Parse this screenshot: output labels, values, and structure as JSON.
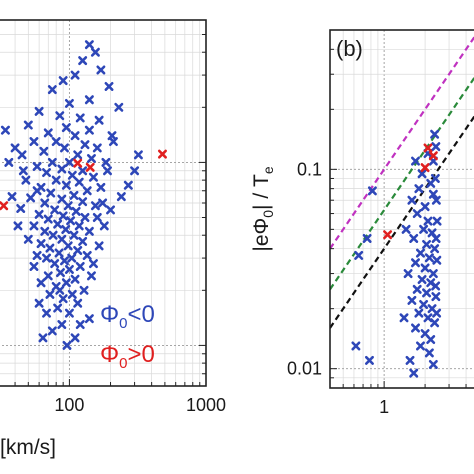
{
  "chart_data": [
    {
      "type": "scatter",
      "panel": "a",
      "xscale": "log",
      "yscale": "log",
      "xlim": [
        30,
        1000
      ],
      "ylim": [
        0.006,
        0.6
      ],
      "xticks": [
        100,
        1000
      ],
      "xtick_labels": [
        "100",
        "1000"
      ],
      "xlabel": "[km/s]",
      "ylabel": "",
      "grid": true,
      "legend": {
        "placement": "bottom-right",
        "entries": [
          {
            "label_main": "Φ",
            "label_sub": "0",
            "label_rest": "<0",
            "color": "#2e47b8"
          },
          {
            "label_main": "Φ",
            "label_sub": "0",
            "label_rest": ">0",
            "color": "#e02020"
          }
        ]
      },
      "series": [
        {
          "color": "#2e47b8",
          "marker": "x",
          "points": [
            [
              140,
              0.44
            ],
            [
              155,
              0.4
            ],
            [
              125,
              0.36
            ],
            [
              170,
              0.32
            ],
            [
              110,
              0.3
            ],
            [
              90,
              0.28
            ],
            [
              195,
              0.26
            ],
            [
              75,
              0.25
            ],
            [
              140,
              0.22
            ],
            [
              100,
              0.21
            ],
            [
              230,
              0.2
            ],
            [
              60,
              0.19
            ],
            [
              85,
              0.18
            ],
            [
              120,
              0.175
            ],
            [
              165,
              0.17
            ],
            [
              50,
              0.16
            ],
            [
              95,
              0.155
            ],
            [
              140,
              0.15
            ],
            [
              70,
              0.145
            ],
            [
              110,
              0.14
            ],
            [
              205,
              0.14
            ],
            [
              55,
              0.13
            ],
            [
              80,
              0.13
            ],
            [
              130,
              0.125
            ],
            [
              92,
              0.12
            ],
            [
              160,
              0.12
            ],
            [
              65,
              0.115
            ],
            [
              115,
              0.11
            ],
            [
              45,
              0.11
            ],
            [
              145,
              0.105
            ],
            [
              75,
              0.1
            ],
            [
              100,
              0.1
            ],
            [
              185,
              0.1
            ],
            [
              58,
              0.095
            ],
            [
              88,
              0.092
            ],
            [
              125,
              0.09
            ],
            [
              68,
              0.088
            ],
            [
              105,
              0.085
            ],
            [
              150,
              0.083
            ],
            [
              48,
              0.08
            ],
            [
              80,
              0.08
            ],
            [
              118,
              0.078
            ],
            [
              95,
              0.075
            ],
            [
              62,
              0.073
            ],
            [
              170,
              0.073
            ],
            [
              135,
              0.07
            ],
            [
              73,
              0.068
            ],
            [
              108,
              0.066
            ],
            [
              52,
              0.064
            ],
            [
              88,
              0.063
            ],
            [
              125,
              0.061
            ],
            [
              66,
              0.06
            ],
            [
              98,
              0.058
            ],
            [
              155,
              0.058
            ],
            [
              44,
              0.056
            ],
            [
              78,
              0.055
            ],
            [
              112,
              0.054
            ],
            [
              60,
              0.052
            ],
            [
              90,
              0.051
            ],
            [
              130,
              0.05
            ],
            [
              70,
              0.049
            ],
            [
              102,
              0.048
            ],
            [
              82,
              0.046
            ],
            [
              55,
              0.045
            ],
            [
              118,
              0.045
            ],
            [
              94,
              0.043
            ],
            [
              66,
              0.042
            ],
            [
              140,
              0.042
            ],
            [
              76,
              0.04
            ],
            [
              108,
              0.04
            ],
            [
              50,
              0.038
            ],
            [
              88,
              0.038
            ],
            [
              125,
              0.037
            ],
            [
              62,
              0.036
            ],
            [
              98,
              0.035
            ],
            [
              72,
              0.034
            ],
            [
              115,
              0.033
            ],
            [
              84,
              0.032
            ],
            [
              58,
              0.031
            ],
            [
              135,
              0.031
            ],
            [
              104,
              0.03
            ],
            [
              68,
              0.03
            ],
            [
              92,
              0.029
            ],
            [
              78,
              0.028
            ],
            [
              120,
              0.027
            ],
            [
              55,
              0.027
            ],
            [
              100,
              0.026
            ],
            [
              86,
              0.025
            ],
            [
              70,
              0.024
            ],
            [
              145,
              0.024
            ],
            [
              110,
              0.023
            ],
            [
              62,
              0.022
            ],
            [
              95,
              0.022
            ],
            [
              80,
              0.021
            ],
            [
              128,
              0.02
            ],
            [
              105,
              0.019
            ],
            [
              72,
              0.019
            ],
            [
              90,
              0.018
            ],
            [
              60,
              0.017
            ],
            [
              115,
              0.017
            ],
            [
              82,
              0.016
            ],
            [
              100,
              0.015
            ],
            [
              68,
              0.015
            ],
            [
              140,
              0.014
            ],
            [
              88,
              0.013
            ],
            [
              75,
              0.012
            ],
            [
              110,
              0.011
            ],
            [
              96,
              0.01
            ],
            [
              64,
              0.011
            ],
            [
              120,
              0.013
            ],
            [
              85,
              0.02
            ],
            [
              150,
              0.028
            ],
            [
              165,
              0.035
            ],
            [
              180,
              0.045
            ],
            [
              200,
              0.055
            ],
            [
              240,
              0.065
            ],
            [
              270,
              0.075
            ],
            [
              300,
              0.09
            ],
            [
              320,
              0.11
            ],
            [
              210,
              0.13
            ],
            [
              190,
              0.09
            ],
            [
              175,
              0.06
            ],
            [
              160,
              0.05
            ],
            [
              58,
              0.07
            ],
            [
              46,
              0.09
            ],
            [
              40,
              0.12
            ],
            [
              38,
              0.065
            ],
            [
              42,
              0.045
            ],
            [
              36,
              0.1
            ],
            [
              34,
              0.15
            ]
          ]
        },
        {
          "color": "#e02020",
          "marker": "x",
          "points": [
            [
              115,
              0.099
            ],
            [
              142,
              0.094
            ],
            [
              480,
              0.111
            ],
            [
              33,
              0.058
            ]
          ]
        }
      ]
    },
    {
      "type": "scatter",
      "panel": "b",
      "panel_label": "(b)",
      "xscale": "log",
      "yscale": "log",
      "xlim": [
        0.4,
        6
      ],
      "ylim": [
        0.008,
        0.5
      ],
      "xticks": [
        1
      ],
      "xtick_labels": [
        "1"
      ],
      "yticks": [
        0.01,
        0.1
      ],
      "ytick_labels": [
        "0.01",
        "0.1"
      ],
      "ylabel_main": "|eΦ",
      "ylabel_sub": "0",
      "ylabel_rest": "| / T",
      "ylabel_sub2": "e",
      "xlabel": "",
      "grid": true,
      "reference_lines": [
        {
          "color": "#c032c0",
          "style": "dashed",
          "y_at_xmin": 0.04,
          "slope": 1
        },
        {
          "color": "#2a8a3a",
          "style": "dashed",
          "y_at_xmin": 0.025,
          "slope": 1
        },
        {
          "color": "#111111",
          "style": "dashed",
          "y_at_xmin": 0.016,
          "slope": 1
        }
      ],
      "series": [
        {
          "color": "#2e47b8",
          "marker": "x",
          "points": [
            [
              0.82,
              0.078
            ],
            [
              0.75,
              0.045
            ],
            [
              0.62,
              0.013
            ],
            [
              0.65,
              0.037
            ],
            [
              0.78,
              0.011
            ],
            [
              1.7,
              0.11
            ],
            [
              1.9,
              0.095
            ],
            [
              2.1,
              0.12
            ],
            [
              1.8,
              0.08
            ],
            [
              2.2,
              0.085
            ],
            [
              1.6,
              0.07
            ],
            [
              2.0,
              0.065
            ],
            [
              2.3,
              0.075
            ],
            [
              1.75,
              0.06
            ],
            [
              2.1,
              0.055
            ],
            [
              1.95,
              0.05
            ],
            [
              2.25,
              0.048
            ],
            [
              1.65,
              0.045
            ],
            [
              2.05,
              0.042
            ],
            [
              2.35,
              0.04
            ],
            [
              1.85,
              0.038
            ],
            [
              2.15,
              0.036
            ],
            [
              1.7,
              0.034
            ],
            [
              2.0,
              0.032
            ],
            [
              2.3,
              0.03
            ],
            [
              1.9,
              0.028
            ],
            [
              2.2,
              0.027
            ],
            [
              1.75,
              0.025
            ],
            [
              2.05,
              0.024
            ],
            [
              2.4,
              0.023
            ],
            [
              1.6,
              0.022
            ],
            [
              1.95,
              0.021
            ],
            [
              2.25,
              0.02
            ],
            [
              1.8,
              0.019
            ],
            [
              2.1,
              0.018
            ],
            [
              2.35,
              0.017
            ],
            [
              1.7,
              0.016
            ],
            [
              2.0,
              0.015
            ],
            [
              2.2,
              0.014
            ],
            [
              1.85,
              0.013
            ],
            [
              2.15,
              0.012
            ],
            [
              1.55,
              0.011
            ],
            [
              2.3,
              0.0105
            ],
            [
              1.65,
              0.0095
            ],
            [
              2.4,
              0.13
            ],
            [
              2.35,
              0.15
            ],
            [
              2.3,
              0.11
            ],
            [
              2.38,
              0.09
            ],
            [
              2.42,
              0.07
            ],
            [
              2.45,
              0.055
            ],
            [
              2.41,
              0.045
            ],
            [
              2.44,
              0.035
            ],
            [
              2.39,
              0.026
            ],
            [
              2.43,
              0.019
            ],
            [
              1.5,
              0.03
            ],
            [
              1.45,
              0.05
            ],
            [
              1.4,
              0.018
            ]
          ]
        },
        {
          "color": "#e02020",
          "marker": "x",
          "points": [
            [
              1.06,
              0.047
            ],
            [
              2.0,
              0.102
            ],
            [
              2.1,
              0.128
            ],
            [
              2.3,
              0.117
            ]
          ]
        }
      ]
    }
  ]
}
